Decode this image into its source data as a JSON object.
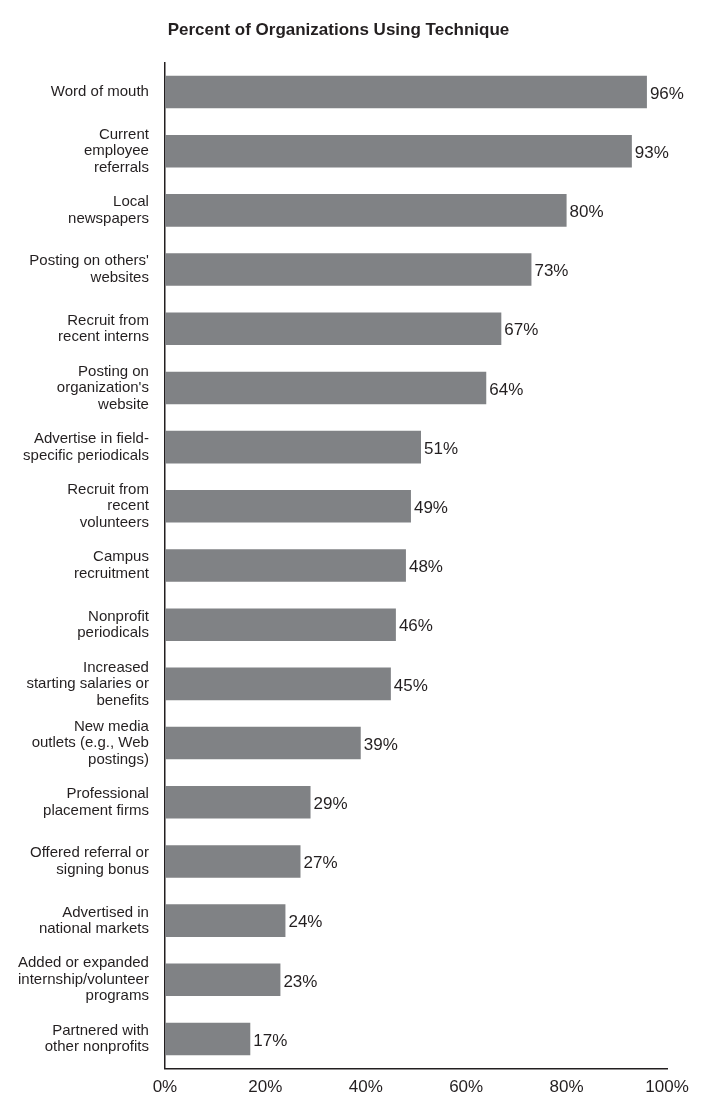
{
  "chart_data": {
    "type": "bar",
    "orientation": "horizontal",
    "title": "Percent of Organizations Using Technique",
    "categories": [
      "Word of mouth",
      "Current\nemployee\nreferrals",
      "Local\nnewspapers",
      "Posting on others'\nwebsites",
      "Recruit from\nrecent interns",
      "Posting on\norganization's\nwebsite",
      "Advertise in field-\nspecific periodicals",
      "Recruit from\nrecent\nvolunteers",
      "Campus\nrecruitment",
      "Nonprofit\nperiodicals",
      "Increased\nstarting salaries or\nbenefits",
      "New media\noutlets (e.g., Web\npostings)",
      "Professional\nplacement firms",
      "Offered referral or\nsigning bonus",
      "Advertised in\nnational markets",
      "Added or expanded\ninternship/volunteer\nprograms",
      "Partnered with\nother nonprofits"
    ],
    "values": [
      96,
      93,
      80,
      73,
      67,
      64,
      51,
      49,
      48,
      46,
      45,
      39,
      29,
      27,
      24,
      23,
      17
    ],
    "value_labels": [
      "96%",
      "93%",
      "80%",
      "73%",
      "67%",
      "64%",
      "51%",
      "49%",
      "48%",
      "46%",
      "45%",
      "39%",
      "29%",
      "27%",
      "24%",
      "23%",
      "17%"
    ],
    "color": "#808285",
    "xlim": [
      0,
      100
    ],
    "xticks": [
      {
        "value": 0,
        "label": "0%"
      },
      {
        "value": 20,
        "label": "20%"
      },
      {
        "value": 40,
        "label": "40%"
      },
      {
        "value": 60,
        "label": "60%"
      },
      {
        "value": 80,
        "label": "80%"
      },
      {
        "value": 100,
        "label": "100%"
      }
    ],
    "grid": false,
    "legend": false
  }
}
